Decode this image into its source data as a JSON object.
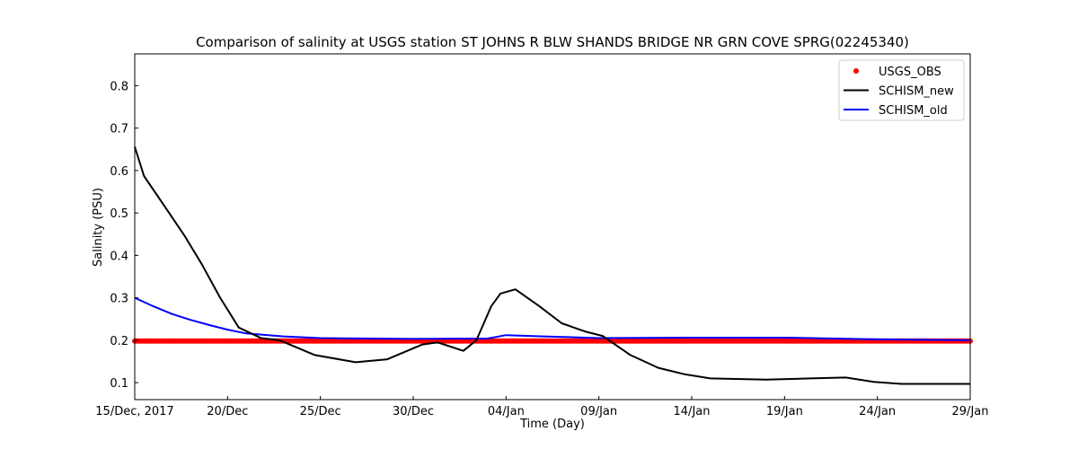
{
  "chart_data": {
    "type": "line",
    "title": "Comparison of salinity at USGS station ST JOHNS R BLW SHANDS BRIDGE NR GRN COVE SPRG(02245340)",
    "xlabel": "Time (Day)",
    "ylabel": "Salinity (PSU)",
    "xlim_days": [
      0,
      45
    ],
    "ylim": [
      0.06,
      0.875
    ],
    "x_ticks": [
      {
        "day": 0,
        "label": "15/Dec, 2017"
      },
      {
        "day": 5,
        "label": "20/Dec"
      },
      {
        "day": 10,
        "label": "25/Dec"
      },
      {
        "day": 15,
        "label": "30/Dec"
      },
      {
        "day": 20,
        "label": "04/Jan"
      },
      {
        "day": 25,
        "label": "09/Jan"
      },
      {
        "day": 30,
        "label": "14/Jan"
      },
      {
        "day": 35,
        "label": "19/Jan"
      },
      {
        "day": 40,
        "label": "24/Jan"
      },
      {
        "day": 45,
        "label": "29/Jan"
      }
    ],
    "y_ticks": [
      {
        "value": 0.1,
        "label": "0.1"
      },
      {
        "value": 0.2,
        "label": "0.2"
      },
      {
        "value": 0.3,
        "label": "0.3"
      },
      {
        "value": 0.4,
        "label": "0.4"
      },
      {
        "value": 0.5,
        "label": "0.5"
      },
      {
        "value": 0.6,
        "label": "0.6"
      },
      {
        "value": 0.7,
        "label": "0.7"
      },
      {
        "value": 0.8,
        "label": "0.8"
      }
    ],
    "legend_position": "top-right",
    "series": [
      {
        "name": "USGS_OBS",
        "style": "points",
        "color": "#ff0000",
        "x_start": 0,
        "x_end": 45,
        "x_step": 0.1,
        "value": 0.198
      },
      {
        "name": "SCHISM_new",
        "style": "line",
        "color": "#000000",
        "x": [
          0,
          0.5,
          1.7,
          2.7,
          3.6,
          4.6,
          5.6,
          6.8,
          7.8,
          9.7,
          11.9,
          13.6,
          15.5,
          16.3,
          17.7,
          18.4,
          19.2,
          19.7,
          20.5,
          21.8,
          23,
          24.3,
          25.2,
          26.7,
          28.2,
          29.6,
          31,
          34,
          36.4,
          38.3,
          39.8,
          41.3,
          45
        ],
        "y": [
          0.656,
          0.587,
          0.51,
          0.445,
          0.38,
          0.3,
          0.23,
          0.205,
          0.2,
          0.165,
          0.148,
          0.155,
          0.19,
          0.195,
          0.175,
          0.2,
          0.28,
          0.31,
          0.32,
          0.28,
          0.24,
          0.22,
          0.21,
          0.165,
          0.135,
          0.12,
          0.11,
          0.107,
          0.11,
          0.112,
          0.102,
          0.097,
          0.097
        ]
      },
      {
        "name": "SCHISM_old",
        "style": "line",
        "color": "#0000ff",
        "x": [
          0,
          1,
          2,
          3,
          4,
          5,
          6,
          8,
          10,
          15,
          19,
          20,
          22,
          25,
          30,
          35,
          40,
          45
        ],
        "y": [
          0.3,
          0.28,
          0.262,
          0.248,
          0.236,
          0.225,
          0.216,
          0.209,
          0.205,
          0.203,
          0.204,
          0.212,
          0.209,
          0.205,
          0.206,
          0.206,
          0.202,
          0.2
        ]
      }
    ]
  }
}
